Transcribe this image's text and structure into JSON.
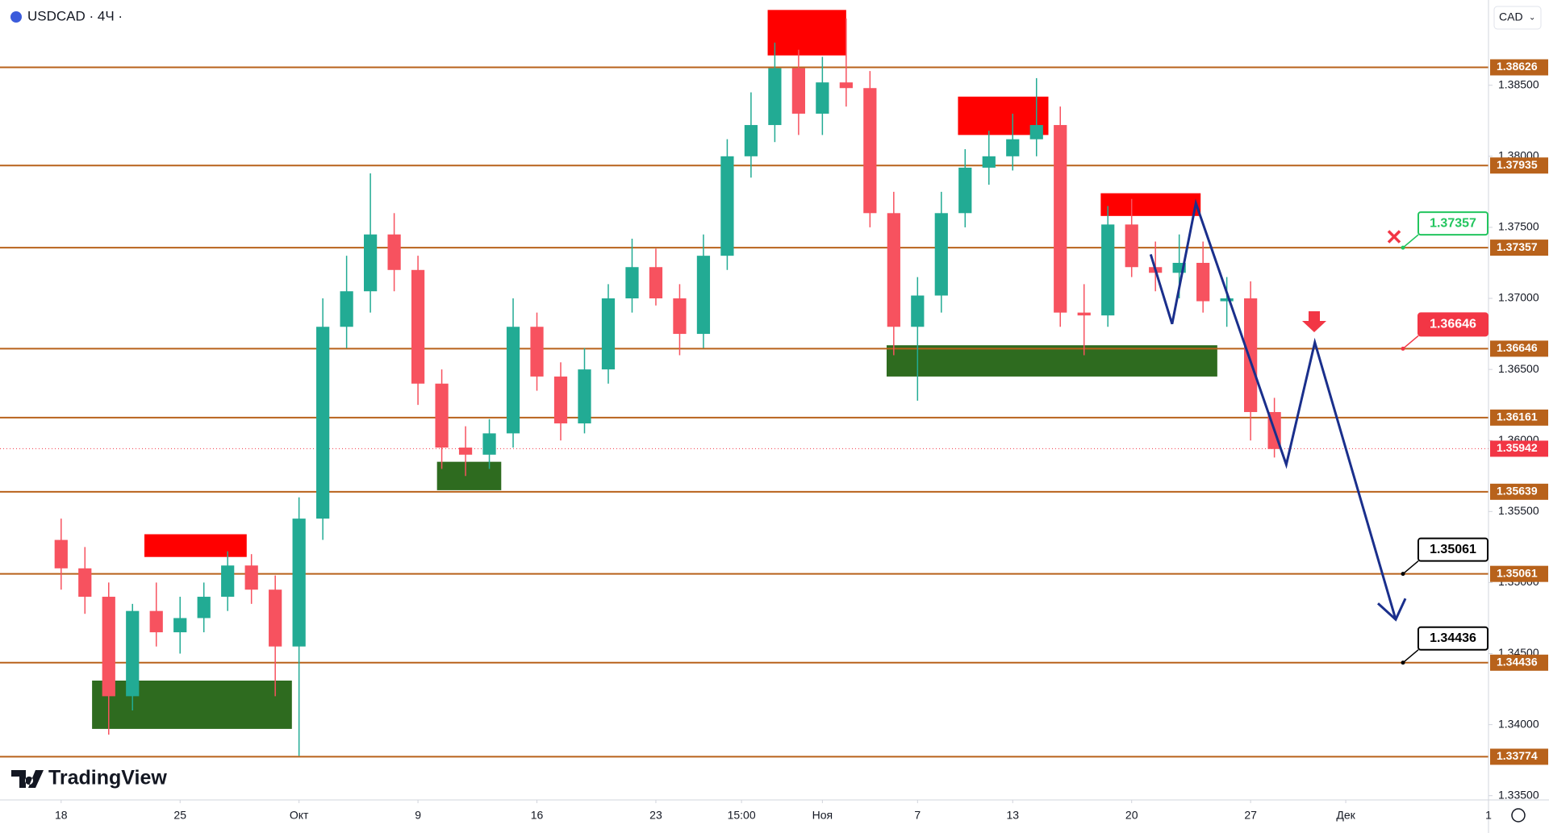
{
  "chart_data": {
    "type": "candlestick",
    "symbol": "USDCAD · 4Ч ·",
    "currency": "CAD",
    "brand": "TradingView",
    "x": [
      0,
      1,
      2,
      3,
      4,
      5,
      6,
      7,
      8,
      9,
      10,
      11,
      12,
      13,
      14,
      15,
      16,
      17,
      18,
      19,
      20,
      21,
      22,
      23,
      24,
      25,
      26,
      27,
      28,
      29,
      30,
      31,
      32,
      33,
      34,
      35,
      36,
      37,
      38,
      39,
      40,
      41,
      42,
      43,
      44,
      45,
      46,
      47,
      48,
      49,
      50,
      51
    ],
    "open": [
      1.353,
      1.351,
      1.349,
      1.342,
      1.348,
      1.3465,
      1.3475,
      1.349,
      1.3512,
      1.3495,
      1.3455,
      1.3545,
      1.368,
      1.3705,
      1.3745,
      1.372,
      1.364,
      1.3595,
      1.359,
      1.3605,
      1.368,
      1.3645,
      1.3612,
      1.365,
      1.37,
      1.3722,
      1.37,
      1.3675,
      1.373,
      1.38,
      1.3822,
      1.3862,
      1.383,
      1.3852,
      1.3848,
      1.376,
      1.368,
      1.3702,
      1.376,
      1.3792,
      1.38,
      1.3812,
      1.3822,
      1.369,
      1.3688,
      1.3752,
      1.3722,
      1.3718,
      1.3725,
      1.3698,
      1.37,
      1.362
    ],
    "high": [
      1.3545,
      1.3525,
      1.35,
      1.3485,
      1.35,
      1.349,
      1.35,
      1.3522,
      1.352,
      1.3505,
      1.356,
      1.37,
      1.373,
      1.3788,
      1.376,
      1.373,
      1.365,
      1.361,
      1.3615,
      1.37,
      1.369,
      1.3655,
      1.3665,
      1.371,
      1.3742,
      1.3735,
      1.371,
      1.3745,
      1.3812,
      1.3845,
      1.388,
      1.3875,
      1.387,
      1.3897,
      1.386,
      1.3775,
      1.3715,
      1.3775,
      1.3805,
      1.3818,
      1.383,
      1.3855,
      1.3835,
      1.371,
      1.3765,
      1.377,
      1.374,
      1.3745,
      1.374,
      1.3715,
      1.3712,
      1.363
    ],
    "low": [
      1.3495,
      1.3478,
      1.3393,
      1.341,
      1.3455,
      1.345,
      1.3465,
      1.348,
      1.3485,
      1.342,
      1.3378,
      1.353,
      1.3665,
      1.369,
      1.3705,
      1.3625,
      1.358,
      1.3575,
      1.358,
      1.3595,
      1.3635,
      1.36,
      1.3605,
      1.364,
      1.369,
      1.3695,
      1.366,
      1.3665,
      1.372,
      1.3785,
      1.381,
      1.3815,
      1.3815,
      1.3835,
      1.375,
      1.366,
      1.3628,
      1.369,
      1.375,
      1.378,
      1.379,
      1.38,
      1.368,
      1.366,
      1.368,
      1.3715,
      1.3705,
      1.37,
      1.369,
      1.368,
      1.36,
      1.3588
    ],
    "close": [
      1.351,
      1.349,
      1.342,
      1.348,
      1.3465,
      1.3475,
      1.349,
      1.3512,
      1.3495,
      1.3455,
      1.3545,
      1.368,
      1.3705,
      1.3745,
      1.372,
      1.364,
      1.3595,
      1.359,
      1.3605,
      1.368,
      1.3645,
      1.3612,
      1.365,
      1.37,
      1.3722,
      1.37,
      1.3675,
      1.373,
      1.38,
      1.3822,
      1.3862,
      1.383,
      1.3852,
      1.3848,
      1.376,
      1.368,
      1.3702,
      1.376,
      1.3792,
      1.38,
      1.3812,
      1.3822,
      1.369,
      1.3688,
      1.3752,
      1.3722,
      1.3718,
      1.3725,
      1.3698,
      1.37,
      1.362,
      1.3594
    ],
    "up_color": "#22ab94",
    "down_color": "#f7525f",
    "xlim": [
      -2.57,
      60
    ],
    "ylim": [
      1.3347,
      1.391
    ],
    "xticks": [
      {
        "value": 0,
        "label": "18"
      },
      {
        "value": 5,
        "label": "25"
      },
      {
        "value": 10,
        "label": "Окт"
      },
      {
        "value": 15,
        "label": "9"
      },
      {
        "value": 20,
        "label": "16"
      },
      {
        "value": 25,
        "label": "23"
      },
      {
        "value": 28.6,
        "label": "15:00"
      },
      {
        "value": 32,
        "label": "Ноя"
      },
      {
        "value": 36,
        "label": "7"
      },
      {
        "value": 40,
        "label": "13"
      },
      {
        "value": 45,
        "label": "20"
      },
      {
        "value": 50,
        "label": "27"
      },
      {
        "value": 54,
        "label": "Дек"
      },
      {
        "value": 60,
        "label": "1"
      }
    ],
    "yticks": [
      {
        "value": 1.335,
        "label": "1.33500"
      },
      {
        "value": 1.34,
        "label": "1.34000"
      },
      {
        "value": 1.345,
        "label": "1.34500"
      },
      {
        "value": 1.35,
        "label": "1.35000"
      },
      {
        "value": 1.355,
        "label": "1.35500"
      },
      {
        "value": 1.36,
        "label": "1.36000"
      },
      {
        "value": 1.365,
        "label": "1.36500"
      },
      {
        "value": 1.37,
        "label": "1.37000"
      },
      {
        "value": 1.375,
        "label": "1.37500"
      },
      {
        "value": 1.38,
        "label": "1.38000"
      },
      {
        "value": 1.385,
        "label": "1.38500"
      }
    ],
    "levels": [
      1.38626,
      1.37935,
      1.37357,
      1.36646,
      1.36161,
      1.35639,
      1.35061,
      1.34436,
      1.33774
    ],
    "level_color": "#b8621b",
    "last_price": 1.35942,
    "last_color": "#f23645",
    "zones": [
      {
        "x0": 3.5,
        "x1": 7.8,
        "ylow": 1.3518,
        "yhigh": 1.3534,
        "color": "#ff0000"
      },
      {
        "x0": 1.3,
        "x1": 9.7,
        "ylow": 1.3397,
        "yhigh": 1.3431,
        "color": "#2e6b1f"
      },
      {
        "x0": 15.8,
        "x1": 18.5,
        "ylow": 1.3565,
        "yhigh": 1.3585,
        "color": "#2e6b1f"
      },
      {
        "x0": 29.7,
        "x1": 33.0,
        "ylow": 1.3871,
        "yhigh": 1.3903,
        "color": "#ff0000"
      },
      {
        "x0": 37.7,
        "x1": 41.5,
        "ylow": 1.3815,
        "yhigh": 1.3842,
        "color": "#ff0000"
      },
      {
        "x0": 34.7,
        "x1": 48.6,
        "ylow": 1.3645,
        "yhigh": 1.3667,
        "color": "#2e6b1f"
      },
      {
        "x0": 43.7,
        "x1": 47.9,
        "ylow": 1.3758,
        "yhigh": 1.3774,
        "color": "#ff0000"
      }
    ],
    "projection": {
      "x": [
        45.8,
        46.7,
        47.7,
        51.5,
        52.7,
        56.1
      ],
      "y": [
        1.3731,
        1.3682,
        1.3767,
        1.3583,
        1.3669,
        1.3474
      ],
      "color": "#1a2f8c"
    },
    "callouts": [
      {
        "value": 1.37357,
        "color": "#22c55e"
      },
      {
        "value": 1.36646,
        "color": "#f23645"
      },
      {
        "value": 1.35061,
        "color": "#000000"
      },
      {
        "value": 1.34436,
        "color": "#000000"
      }
    ]
  }
}
